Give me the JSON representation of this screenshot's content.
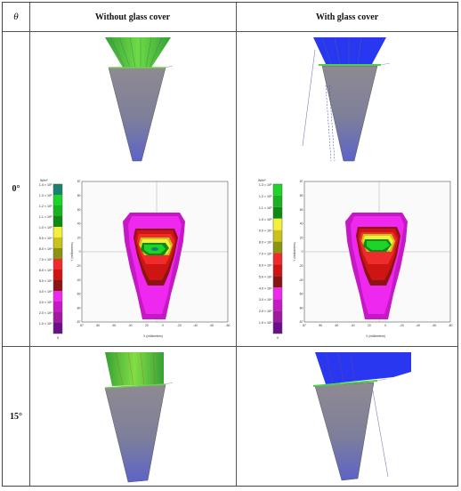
{
  "table": {
    "header": {
      "theta": "θ",
      "col1": "Without glass cover",
      "col2": "With glass cover"
    },
    "rows": [
      {
        "label": "0°"
      },
      {
        "label": "15°"
      }
    ]
  },
  "maps": {
    "left": {
      "unit": "W/m²",
      "legend": [
        "1.4 × 10⁵",
        "1.3 × 10⁵",
        "1.2 × 10⁵",
        "1.1 × 10⁵",
        "1.0 × 10⁵",
        "9.0 × 10⁴",
        "8.0 × 10⁴",
        "7.0 × 10⁴",
        "6.0 × 10⁴",
        "5.0 × 10⁴",
        "4.0 × 10⁴",
        "3.0 × 10⁴",
        "2.0 × 10⁴",
        "1.0 × 10⁴"
      ],
      "legend_colors": [
        "#17836e",
        "#1dd42a",
        "#19b320",
        "#0e8a15",
        "#f4ef3a",
        "#c9c21a",
        "#8a9411",
        "#ef2b2b",
        "#cf1414",
        "#8a1313",
        "#ef28ef",
        "#c419c4",
        "#a01aa0",
        "#6c0e8c"
      ],
      "xticks": [
        "87",
        "80",
        "60",
        "40",
        "20",
        "0",
        "-20",
        "-40",
        "-60",
        "-80"
      ],
      "yticks": [
        "87",
        "80",
        "60",
        "40",
        "20",
        "0",
        "-20",
        "-40",
        "-60",
        "-80",
        "-87"
      ],
      "xlabel": "X (millimeters)",
      "ylabel": "Y (millimeters)",
      "bottom_val": "0"
    },
    "right": {
      "unit": "W/m²",
      "legend": [
        "1.3 × 10⁵",
        "1.2 × 10⁵",
        "1.1 × 10⁵",
        "1.0 × 10⁵",
        "9.0 × 10⁴",
        "8.0 × 10⁴",
        "7.0 × 10⁴",
        "6.0 × 10⁴",
        "5.0 × 10⁴",
        "4.0 × 10⁴",
        "3.0 × 10⁴",
        "2.0 × 10⁴",
        "1.0 × 10⁴"
      ],
      "legend_colors": [
        "#1dd42a",
        "#19b320",
        "#0e8a15",
        "#f4ef3a",
        "#c9c21a",
        "#8a9411",
        "#ef2b2b",
        "#cf1414",
        "#8a1313",
        "#ef28ef",
        "#c419c4",
        "#a01aa0",
        "#6c0e8c"
      ],
      "xticks": [
        "87",
        "80",
        "60",
        "40",
        "20",
        "0",
        "-20",
        "-40",
        "-60",
        "-80"
      ],
      "yticks": [
        "87",
        "80",
        "60",
        "40",
        "20",
        "0",
        "-20",
        "-40",
        "-60",
        "-80",
        "-87"
      ],
      "xlabel": "X (millimeters)",
      "ylabel": "Y (millimeters)",
      "bottom_val": "0"
    }
  },
  "colors": {
    "ray_green": "#3fc43a",
    "ray_blue": "#1f2cf0",
    "cone_gray": "#8a8f98",
    "cone_blue": "#5d63c8"
  }
}
